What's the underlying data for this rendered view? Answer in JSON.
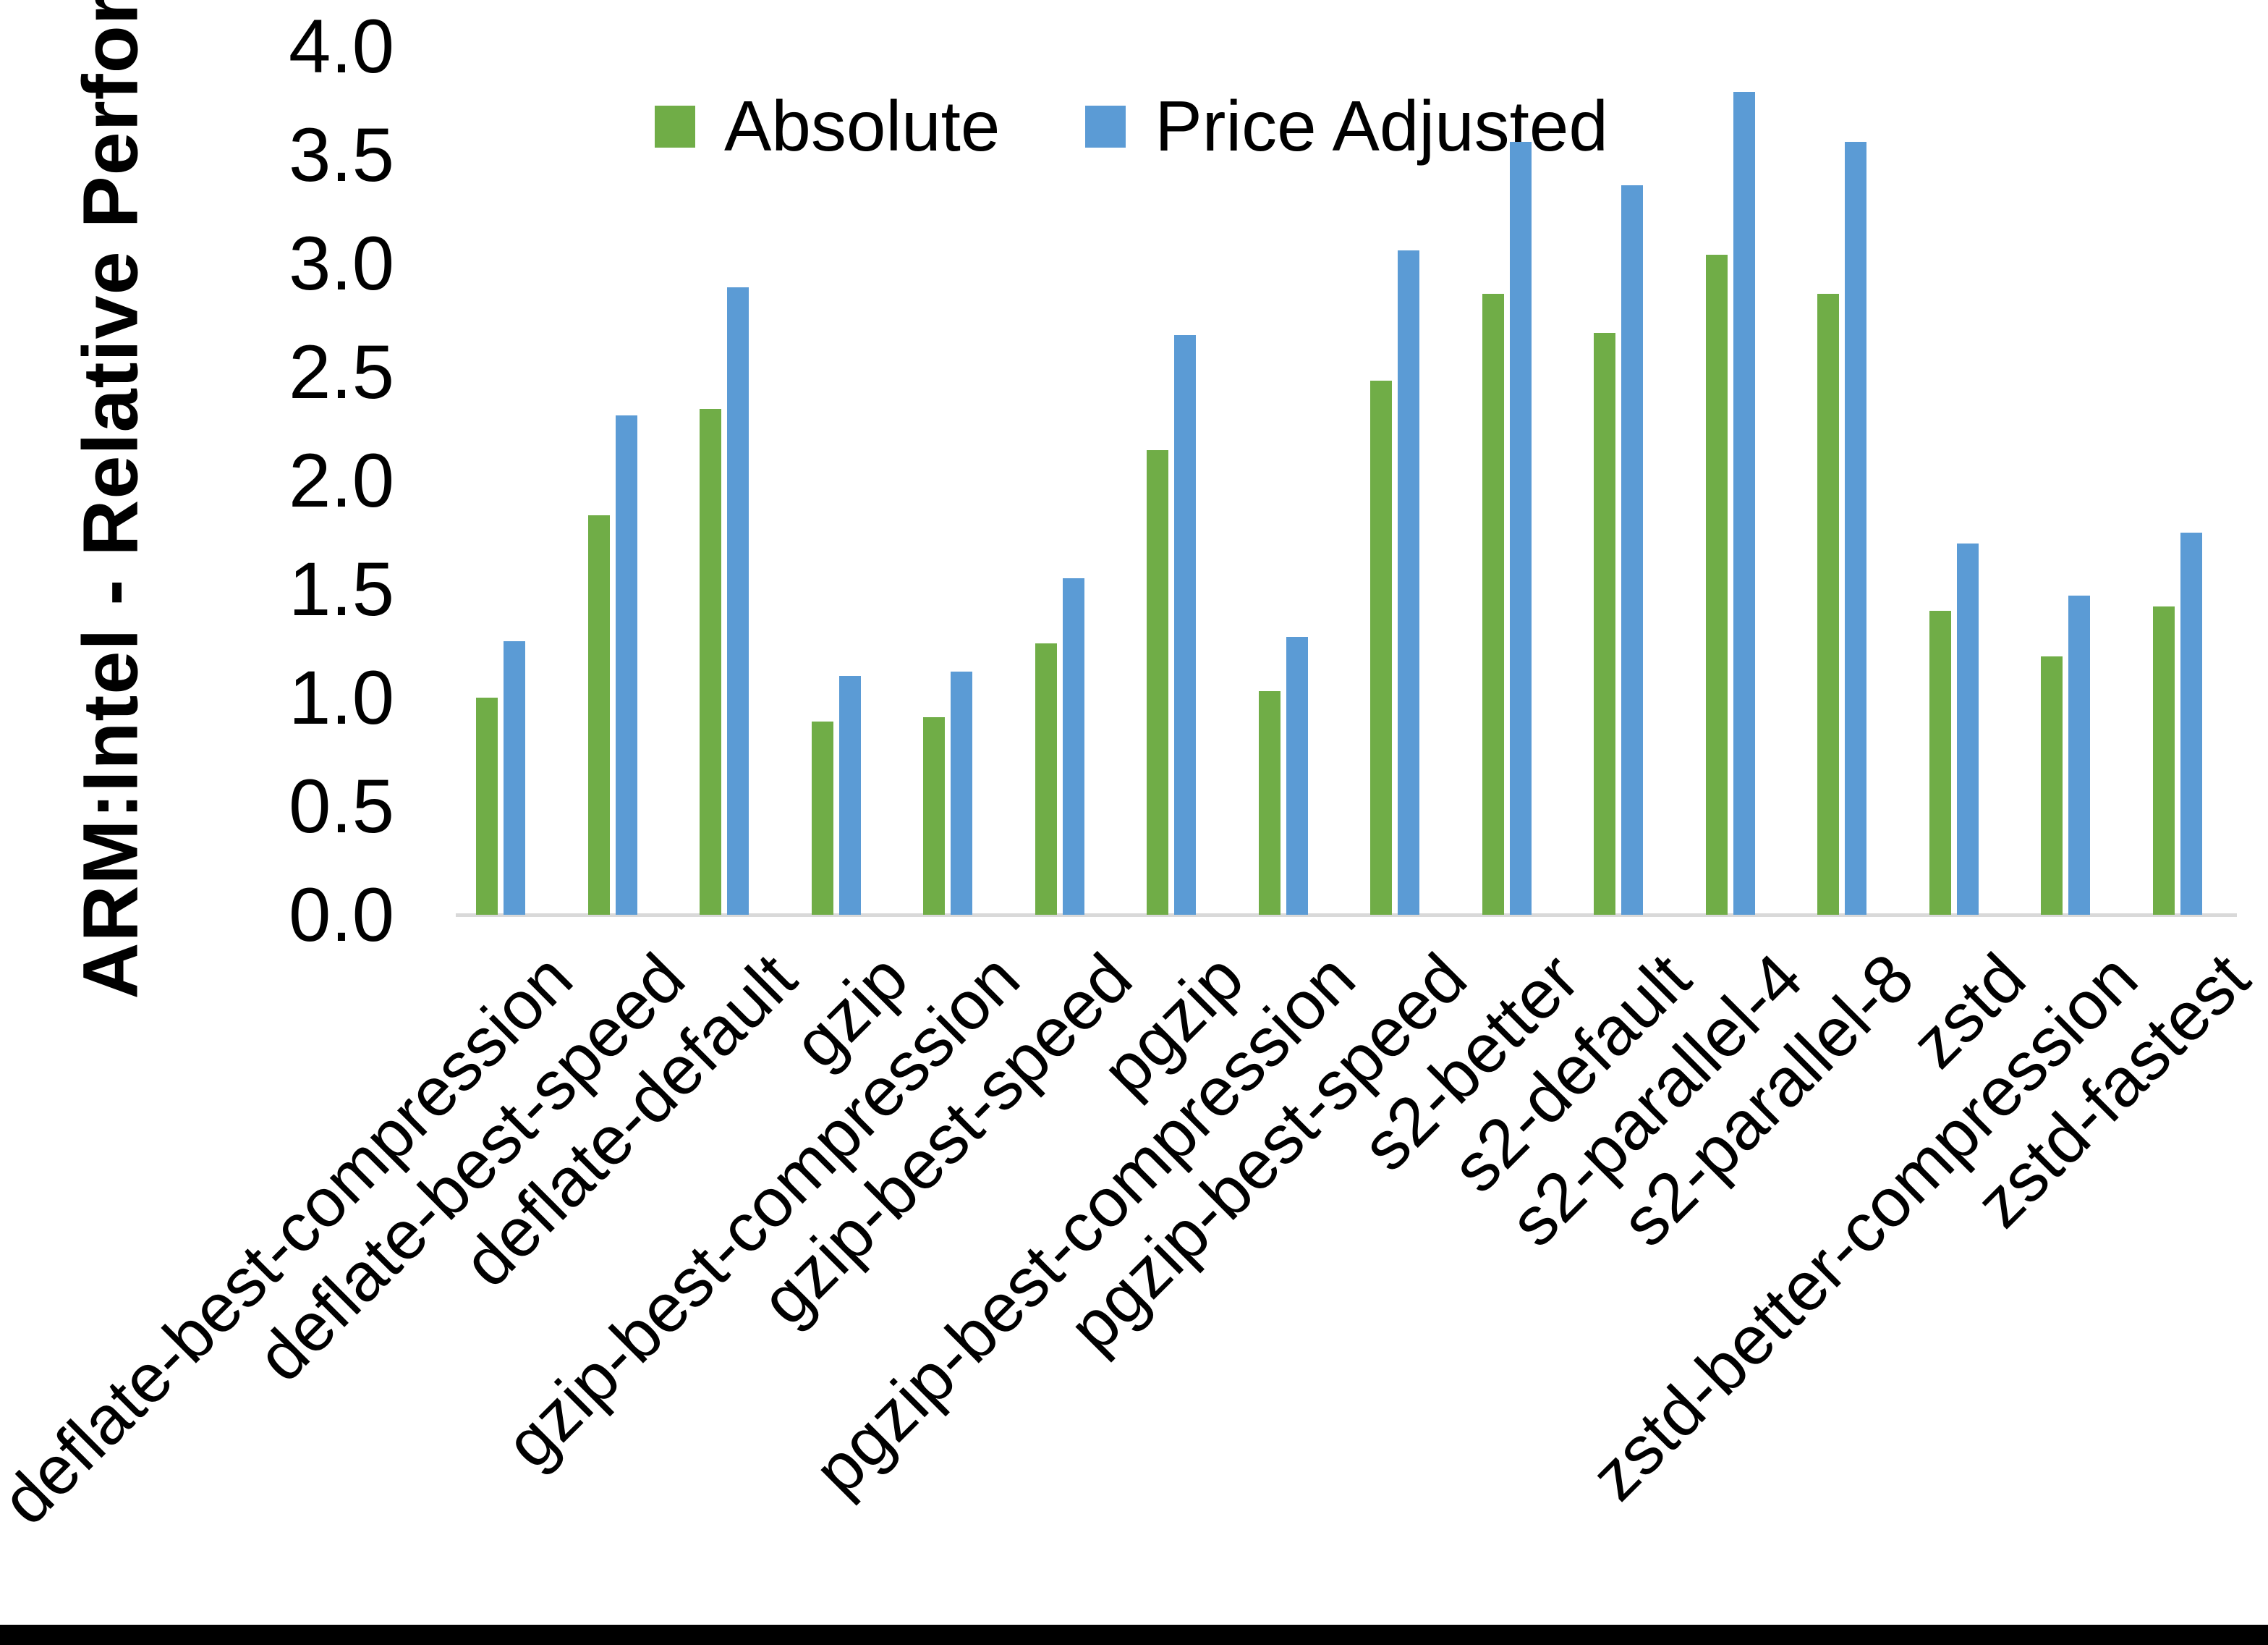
{
  "axis": {
    "y_title": "ARM:Intel - Relative Performance",
    "y_ticks": [
      "4.0",
      "3.5",
      "3.0",
      "2.5",
      "2.0",
      "1.5",
      "1.0",
      "0.5",
      "0.0"
    ],
    "y_max": 4.0,
    "y_step": 0.5
  },
  "legend": {
    "items": [
      {
        "label": "Absolute",
        "color": "#70AD47"
      },
      {
        "label": "Price Adjusted",
        "color": "#5B9BD5"
      }
    ]
  },
  "colors": {
    "absolute_green": "#70AD47",
    "price_adjusted_blue": "#5B9BD5",
    "axis_line_gray": "#d9d9d9",
    "bottom_edge_black": "#000000"
  },
  "chart_data": {
    "type": "bar",
    "title": "",
    "xlabel": "",
    "ylabel": "ARM:Intel - Relative Performance",
    "ylim": [
      0,
      4
    ],
    "ytick_step": 0.5,
    "grid": false,
    "legend_position": "top",
    "categories": [
      "deflate-best-compression",
      "deflate-best-speed",
      "deflate-default",
      "gzip",
      "gzip-best-compression",
      "gzip-best-speed",
      "pgzip",
      "pgzip-best-compression",
      "pgzip-best-speed",
      "s2-better",
      "s2-default",
      "s2-parallel-4",
      "s2-parallel-8",
      "zstd",
      "zstd-better-compression",
      "zstd-fastest"
    ],
    "series": [
      {
        "name": "Absolute",
        "color": "#70AD47",
        "values": [
          1.0,
          1.84,
          2.33,
          0.89,
          0.91,
          1.25,
          2.14,
          1.03,
          2.46,
          2.86,
          2.68,
          3.04,
          2.86,
          1.4,
          1.19,
          1.42
        ]
      },
      {
        "name": "Price Adjusted",
        "color": "#5B9BD5",
        "values": [
          1.26,
          2.3,
          2.89,
          1.1,
          1.12,
          1.55,
          2.67,
          1.28,
          3.06,
          3.56,
          3.36,
          3.79,
          3.56,
          1.71,
          1.47,
          1.76
        ]
      }
    ]
  }
}
